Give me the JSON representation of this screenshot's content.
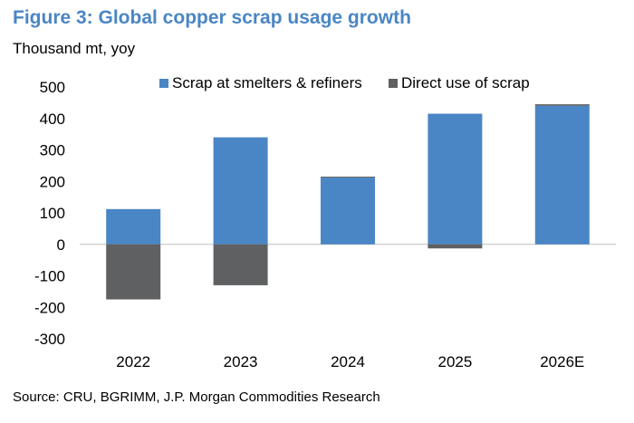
{
  "title": "Figure 3: Global copper scrap usage growth",
  "subtitle": "Thousand mt, yoy",
  "source": "Source: CRU, BGRIMM, J.P. Morgan Commodities Research",
  "colors": {
    "title": "#4a86c5",
    "series_0": "#4a86c5",
    "series_1": "#5f6062"
  },
  "chart_data": {
    "type": "bar",
    "stacked": true,
    "categories": [
      "2022",
      "2023",
      "2024",
      "2025",
      "2026E"
    ],
    "series": [
      {
        "name": "Scrap at smelters & refiners",
        "values": [
          112,
          340,
          212,
          415,
          440
        ]
      },
      {
        "name": "Direct use of scrap",
        "values": [
          -175,
          -130,
          3,
          -13,
          5
        ]
      }
    ],
    "ylim": [
      -300,
      500
    ],
    "yticks": [
      500,
      400,
      300,
      200,
      100,
      0,
      -100,
      -200,
      -300
    ],
    "ytick_labels": [
      "500",
      "400",
      "300",
      "200",
      "100",
      "0",
      "-100",
      "-200",
      "-300"
    ],
    "grid": false,
    "legend_position": "top"
  }
}
